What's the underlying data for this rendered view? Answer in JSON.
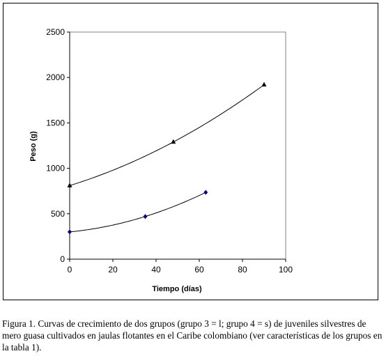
{
  "chart_data": {
    "type": "scatter",
    "xlabel": "Tiempo (días)",
    "ylabel": "Peso (g)",
    "xlim": [
      0,
      100
    ],
    "ylim": [
      0,
      2500
    ],
    "x_ticks": [
      0,
      20,
      40,
      60,
      80,
      100
    ],
    "y_ticks": [
      0,
      500,
      1000,
      1500,
      2000,
      2500
    ],
    "x_tick_labels": [
      "0",
      "20",
      "40",
      "60",
      "80",
      "100"
    ],
    "y_tick_labels": [
      "0",
      "500",
      "1000",
      "1500",
      "2000",
      "2500"
    ],
    "grid": false,
    "trendline": true,
    "series": [
      {
        "marker": "triangle",
        "color": "#000000",
        "points": [
          {
            "x": 0,
            "y": 810
          },
          {
            "x": 48,
            "y": 1290
          },
          {
            "x": 90,
            "y": 1920
          }
        ]
      },
      {
        "marker": "diamond",
        "color": "#000080",
        "points": [
          {
            "x": 0,
            "y": 300
          },
          {
            "x": 35,
            "y": 470
          },
          {
            "x": 63,
            "y": 735
          }
        ]
      }
    ]
  },
  "caption": "Figura 1.  Curvas de crecimiento de dos grupos (grupo 3 = l; grupo 4 = s) de juveniles silvestres de mero guasa cultivados en jaulas flotantes en el Caribe colombiano (ver características de los grupos en la tabla 1)."
}
